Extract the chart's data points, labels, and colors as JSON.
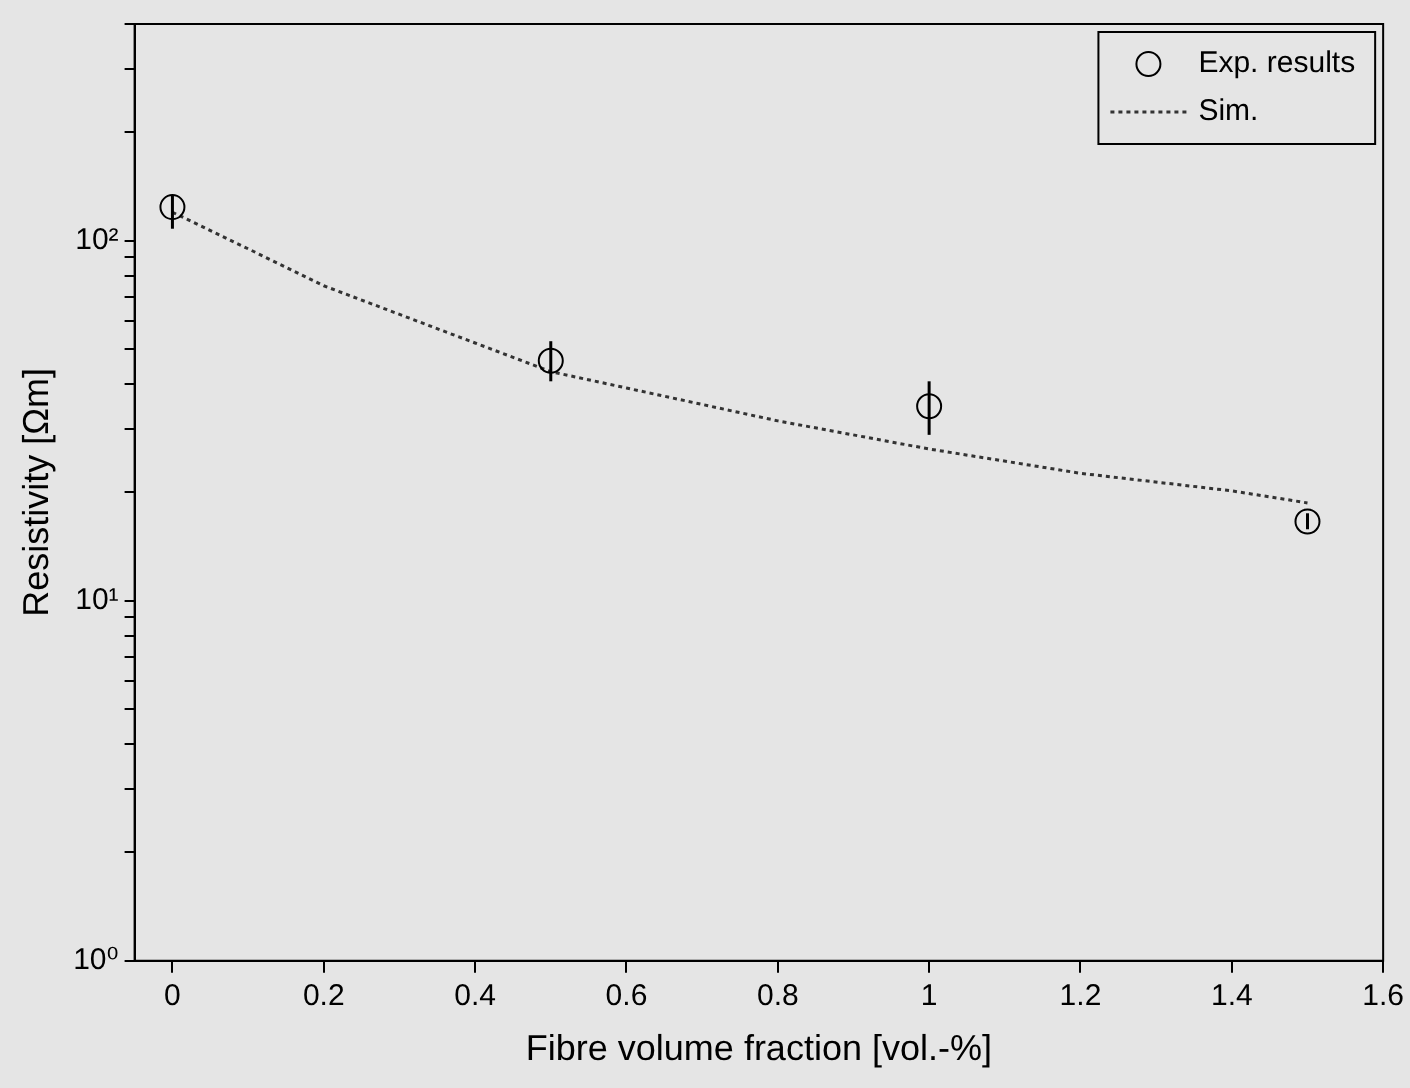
{
  "chart_data": {
    "type": "scatter",
    "xlabel": "Fibre volume fraction [vol.-%]",
    "ylabel": "Resistivity [Ωm]",
    "log": "y",
    "grid": false,
    "legend": "top right",
    "xlim": [
      -0.05,
      1.6
    ],
    "xticks": [
      0,
      0.2,
      0.4,
      0.6,
      0.8,
      1,
      1.2,
      1.4,
      1.6
    ],
    "ylim": [
      1,
      400
    ],
    "yticks": [
      {
        "value": 1,
        "label": "10⁰"
      },
      {
        "value": 2,
        "label": null
      },
      {
        "value": 3,
        "label": null
      },
      {
        "value": 4,
        "label": null
      },
      {
        "value": 5,
        "label": null
      },
      {
        "value": 6,
        "label": null
      },
      {
        "value": 7,
        "label": null
      },
      {
        "value": 8,
        "label": null
      },
      {
        "value": 9,
        "label": null
      },
      {
        "value": 10,
        "label": "10¹"
      },
      {
        "value": 20,
        "label": null
      },
      {
        "value": 30,
        "label": null
      },
      {
        "value": 40,
        "label": null
      },
      {
        "value": 50,
        "label": null
      },
      {
        "value": 60,
        "label": null
      },
      {
        "value": 70,
        "label": null
      },
      {
        "value": 80,
        "label": null
      },
      {
        "value": 90,
        "label": null
      },
      {
        "value": 100,
        "label": "10²"
      },
      {
        "value": 200,
        "label": null
      },
      {
        "value": 300,
        "label": null
      },
      {
        "value": 400,
        "label": null
      }
    ],
    "series": [
      {
        "name": "Exp. results",
        "color": "#000000",
        "marker": "circle",
        "x": [
          0,
          0.5,
          1,
          1.5
        ],
        "values": [
          124,
          46.4,
          34.7,
          16.6
        ],
        "errors": [
          [
            108,
            134
          ],
          [
            40.7,
            52.6
          ],
          [
            28.9,
            40.7
          ],
          [
            15.8,
            17.5
          ]
        ]
      },
      {
        "name": "Sim.",
        "type": "line",
        "color": "#333333",
        "marker": "none",
        "line_style": "dotted",
        "x": [
          0,
          0.1,
          0.2,
          0.4,
          0.5,
          0.6,
          0.8,
          1,
          1.2,
          1.4,
          1.5
        ],
        "values": [
          120,
          95,
          75,
          52,
          43.3,
          39,
          31.6,
          26.4,
          22.6,
          20.2,
          18.7
        ]
      }
    ]
  }
}
